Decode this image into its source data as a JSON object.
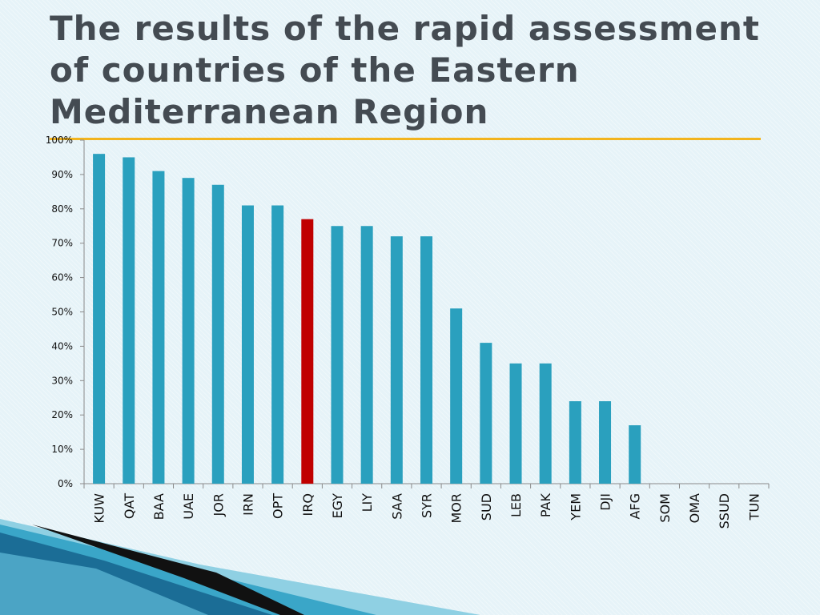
{
  "slide": {
    "title": "The results of the rapid assessment of countries of the Eastern Mediterranean Region",
    "rule_color": "#f2b41e"
  },
  "chart_data": {
    "type": "bar",
    "categories": [
      "KUW",
      "QAT",
      "BAA",
      "UAE",
      "JOR",
      "IRN",
      "OPT",
      "IRQ",
      "EGY",
      "LIY",
      "SAA",
      "SYR",
      "MOR",
      "SUD",
      "LEB",
      "PAK",
      "YEM",
      "DJI",
      "AFG",
      "SOM",
      "OMA",
      "SSUD",
      "TUN"
    ],
    "values": [
      96,
      95,
      91,
      89,
      87,
      81,
      81,
      77,
      75,
      75,
      72,
      72,
      51,
      41,
      35,
      35,
      24,
      24,
      17,
      0,
      0,
      0,
      0
    ],
    "ylim": [
      0,
      100
    ],
    "yticks": [
      "0%",
      "10%",
      "20%",
      "30%",
      "40%",
      "50%",
      "60%",
      "70%",
      "80%",
      "90%",
      "100%"
    ],
    "bar_color": "#2aa0be",
    "highlight": {
      "category": "IRQ",
      "color": "#c00000"
    },
    "grid": false,
    "legend": "none"
  }
}
